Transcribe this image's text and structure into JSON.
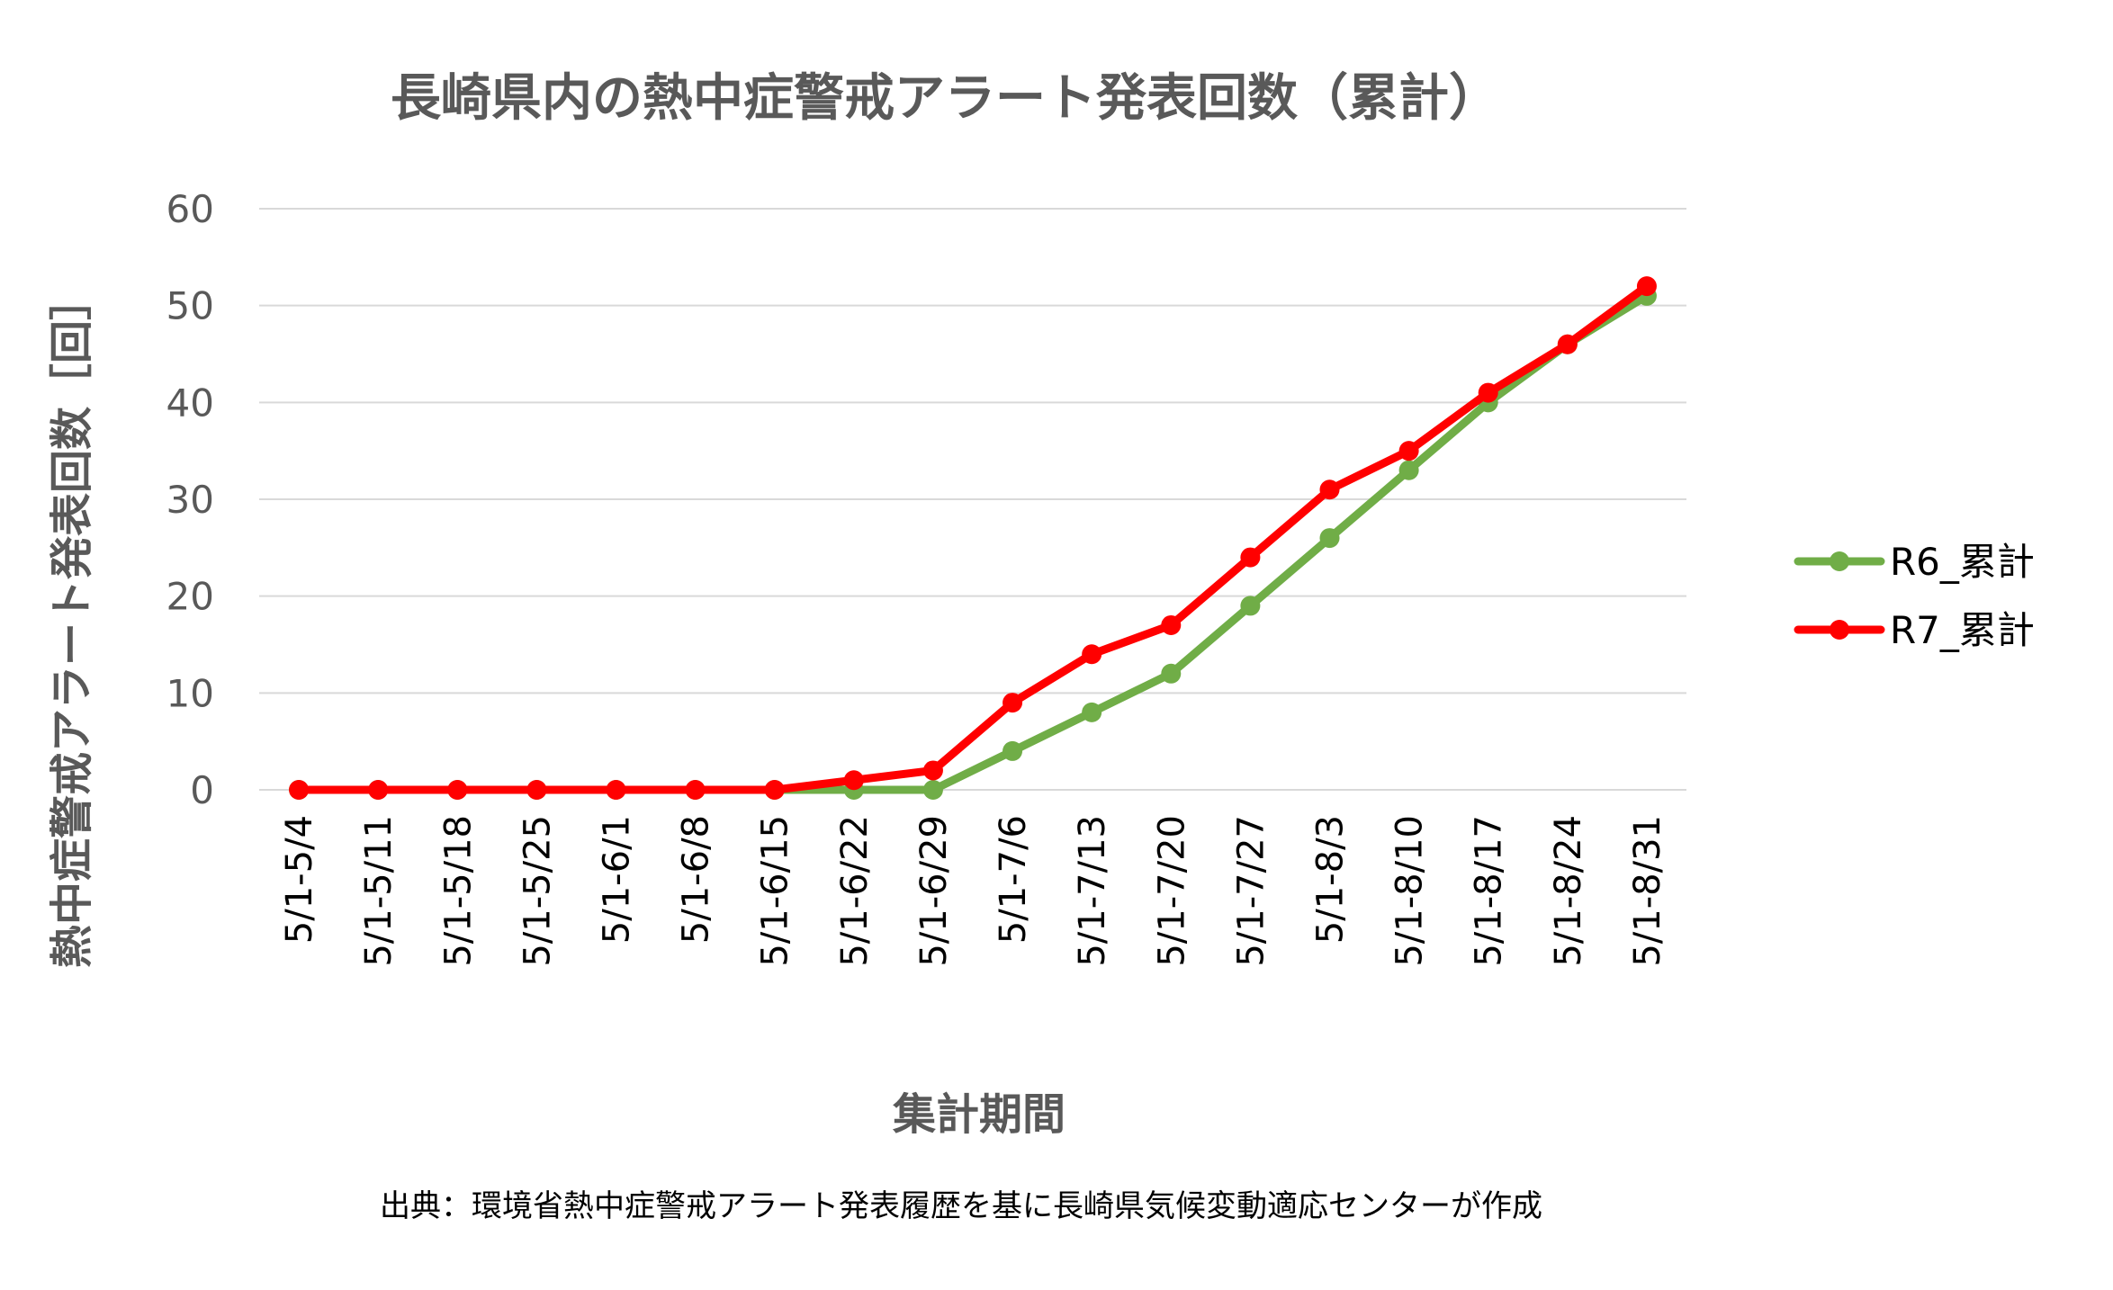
{
  "chart_data": {
    "type": "line",
    "title": "長崎県内の熱中症警戒アラート発表回数（累計）",
    "xlabel": "集計期間",
    "ylabel": "熱中症警戒アラート発表回数［回］",
    "ylim": [
      0,
      60
    ],
    "yticks": [
      "0",
      "10",
      "20",
      "30",
      "40",
      "50",
      "60"
    ],
    "grid": true,
    "legend_position": "right",
    "categories": [
      "5/1-5/4",
      "5/1-5/11",
      "5/1-5/18",
      "5/1-5/25",
      "5/1-6/1",
      "5/1-6/8",
      "5/1-6/15",
      "5/1-6/22",
      "5/1-6/29",
      "5/1-7/6",
      "5/1-7/13",
      "5/1-7/20",
      "5/1-7/27",
      "5/1-8/3",
      "5/1-8/10",
      "5/1-8/17",
      "5/1-8/24",
      "5/1-8/31"
    ],
    "series": [
      {
        "name": "R6_累計",
        "color": "#70ad47",
        "values": [
          0,
          0,
          0,
          0,
          0,
          0,
          0,
          0,
          0,
          4,
          8,
          12,
          19,
          26,
          33,
          40,
          46,
          51
        ]
      },
      {
        "name": "R7_累計",
        "color": "#ff0000",
        "values": [
          0,
          0,
          0,
          0,
          0,
          0,
          0,
          1,
          2,
          9,
          14,
          17,
          24,
          31,
          35,
          41,
          46,
          52
        ]
      }
    ],
    "source": "出典：環境省熱中症警戒アラート発表履歴を基に長崎県気候変動適応センターが作成"
  }
}
